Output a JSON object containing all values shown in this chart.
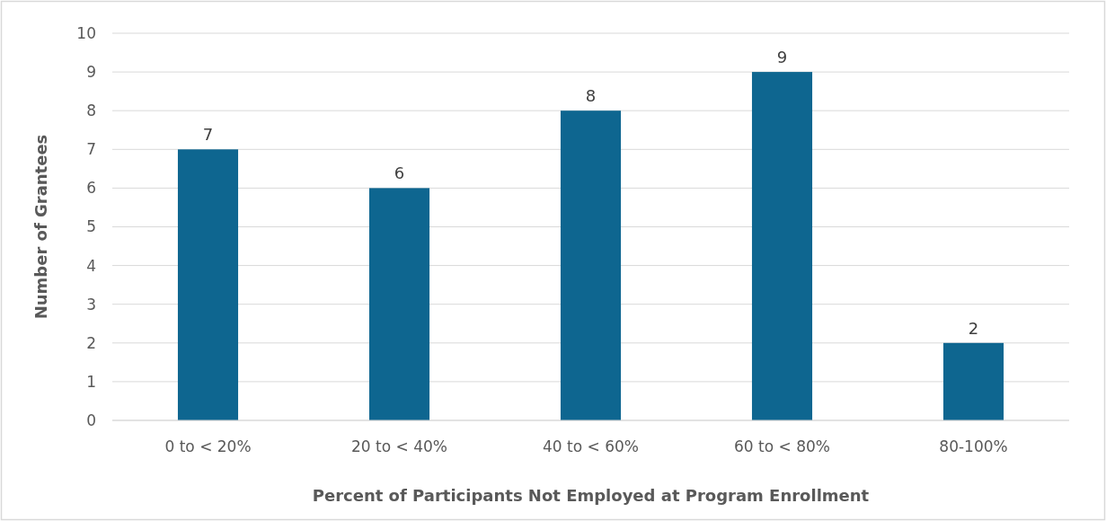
{
  "chart_data": {
    "type": "bar",
    "xlabel": "Percent of Participants Not Employed at Program Enrollment",
    "ylabel": "Number of Grantees",
    "categories": [
      "0 to < 20%",
      "20 to < 40%",
      "40 to < 60%",
      "60 to < 80%",
      "80-100%"
    ],
    "values": [
      7,
      6,
      8,
      9,
      2
    ],
    "color": "#0e6690",
    "ylim": [
      0,
      10
    ],
    "yticks": [
      0,
      1,
      2,
      3,
      4,
      5,
      6,
      7,
      8,
      9,
      10
    ],
    "grid": "y",
    "data_labels": true
  }
}
